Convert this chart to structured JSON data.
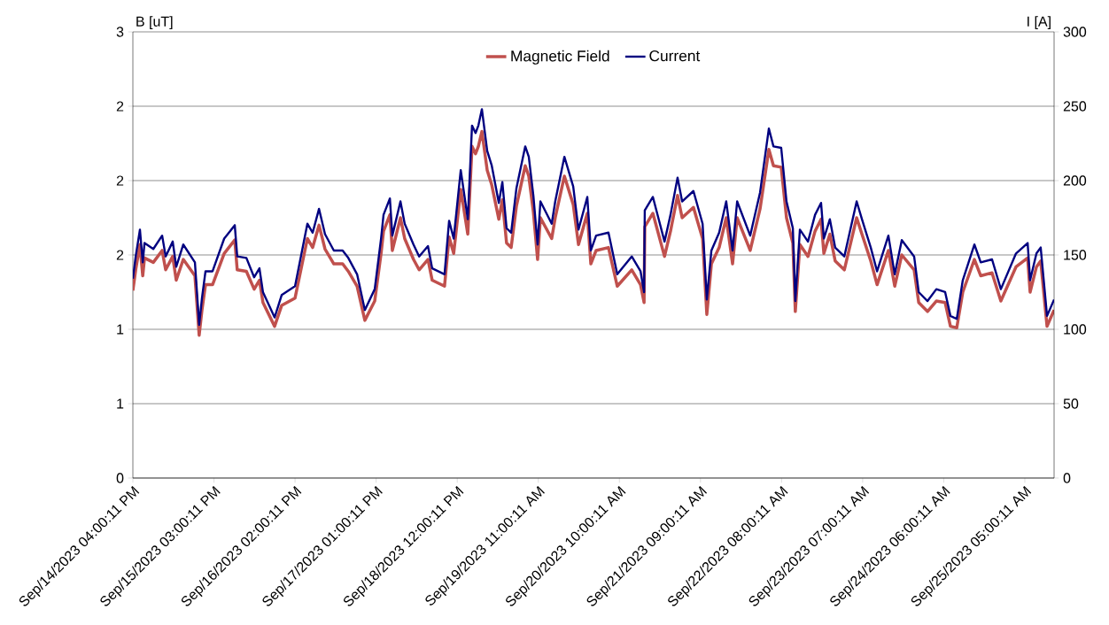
{
  "chart_data": {
    "type": "line",
    "ylabel": "B [uT]",
    "y2label": "I [A]",
    "legend": "top",
    "grid": "y",
    "xlim": [
      "2023-09-14T16:00",
      "2023-09-25T13:18"
    ],
    "xticks": [
      {
        "value": "2023-09-14T16:00",
        "label": "Sep/14/2023 04:00:11 PM"
      },
      {
        "value": "2023-09-15T15:00",
        "label": "Sep/15/2023 03:00:11 PM"
      },
      {
        "value": "2023-09-16T14:00",
        "label": "Sep/16/2023 02:00:11 PM"
      },
      {
        "value": "2023-09-17T13:00",
        "label": "Sep/17/2023 01:00:11 PM"
      },
      {
        "value": "2023-09-18T12:00",
        "label": "Sep/18/2023 12:00:11 PM"
      },
      {
        "value": "2023-09-19T11:00",
        "label": "Sep/19/2023 11:00:11 AM"
      },
      {
        "value": "2023-09-20T10:00",
        "label": "Sep/20/2023 10:00:11 AM"
      },
      {
        "value": "2023-09-21T09:00",
        "label": "Sep/21/2023 09:00:11 AM"
      },
      {
        "value": "2023-09-22T08:00",
        "label": "Sep/22/2023 08:00:11 AM"
      },
      {
        "value": "2023-09-23T07:00",
        "label": "Sep/23/2023 07:00:11 AM"
      },
      {
        "value": "2023-09-24T06:00",
        "label": "Sep/24/2023 06:00:11 AM"
      },
      {
        "value": "2023-09-25T05:00",
        "label": "Sep/25/2023 05:00:11 AM"
      }
    ],
    "ylim": [
      0,
      3
    ],
    "yticks": [
      0,
      {
        "value": 0.5,
        "label": "1"
      },
      1,
      {
        "value": 1.5,
        "label": "2"
      },
      2,
      {
        "value": 2.5,
        "label": "2"
      },
      3
    ],
    "y2lim": [
      0,
      300
    ],
    "y2ticks": [
      0,
      50,
      100,
      150,
      200,
      250,
      300
    ],
    "x": [
      "2023-09-14T16:00",
      "2023-09-14T16:48",
      "2023-09-14T18:00",
      "2023-09-14T18:48",
      "2023-09-14T19:18",
      "2023-09-14T21:48",
      "2023-09-15T00:18",
      "2023-09-15T01:18",
      "2023-09-15T03:18",
      "2023-09-15T04:18",
      "2023-09-15T06:18",
      "2023-09-15T09:36",
      "2023-09-15T10:48",
      "2023-09-15T11:36",
      "2023-09-15T12:36",
      "2023-09-15T14:36",
      "2023-09-15T17:54",
      "2023-09-15T20:54",
      "2023-09-15T21:36",
      "2023-09-16T00:12",
      "2023-09-16T02:24",
      "2023-09-16T03:54",
      "2023-09-16T04:54",
      "2023-09-16T08:12",
      "2023-09-16T10:12",
      "2023-09-16T14:00",
      "2023-09-16T17:30",
      "2023-09-16T19:00",
      "2023-09-16T20:48",
      "2023-09-16T22:30",
      "2023-09-17T01:00",
      "2023-09-17T03:30",
      "2023-09-17T05:06",
      "2023-09-17T07:36",
      "2023-09-17T09:48",
      "2023-09-17T12:36",
      "2023-09-17T14:24",
      "2023-09-17T15:06",
      "2023-09-17T16:54",
      "2023-09-17T17:36",
      "2023-09-17T19:54",
      "2023-09-17T21:06",
      "2023-09-17T23:36",
      "2023-09-18T01:12",
      "2023-09-18T03:42",
      "2023-09-18T04:54",
      "2023-09-18T08:24",
      "2023-09-18T09:42",
      "2023-09-18T11:00",
      "2023-09-18T13:00",
      "2023-09-18T15:00",
      "2023-09-18T16:12",
      "2023-09-18T17:12",
      "2023-09-18T18:00",
      "2023-09-18T19:00",
      "2023-09-18T20:30",
      "2023-09-18T21:48",
      "2023-09-18T23:48",
      "2023-09-19T00:48",
      "2023-09-19T02:00",
      "2023-09-19T03:18",
      "2023-09-19T04:48",
      "2023-09-19T07:18",
      "2023-09-19T08:18",
      "2023-09-19T09:36",
      "2023-09-19T10:48",
      "2023-09-19T11:36",
      "2023-09-19T14:48",
      "2023-09-19T15:48",
      "2023-09-19T18:24",
      "2023-09-19T20:54",
      "2023-09-19T22:24",
      "2023-09-20T00:54",
      "2023-09-20T01:54",
      "2023-09-20T03:24",
      "2023-09-20T06:54",
      "2023-09-20T09:24",
      "2023-09-20T13:30",
      "2023-09-20T16:00",
      "2023-09-20T17:00",
      "2023-09-20T17:12",
      "2023-09-20T19:30",
      "2023-09-20T22:48",
      "2023-09-21T00:30",
      "2023-09-21T02:30",
      "2023-09-21T03:48",
      "2023-09-21T07:00",
      "2023-09-21T09:36",
      "2023-09-21T10:48",
      "2023-09-21T12:06",
      "2023-09-21T14:18",
      "2023-09-21T16:18",
      "2023-09-21T18:06",
      "2023-09-21T19:24",
      "2023-09-21T23:06",
      "2023-09-22T01:54",
      "2023-09-22T04:24",
      "2023-09-22T05:42",
      "2023-09-22T07:54",
      "2023-09-22T09:24",
      "2023-09-22T11:12",
      "2023-09-22T11:54",
      "2023-09-22T13:12",
      "2023-09-22T15:30",
      "2023-09-22T17:30",
      "2023-09-22T19:12",
      "2023-09-22T20:00",
      "2023-09-22T21:42",
      "2023-09-22T23:12",
      "2023-09-23T01:48",
      "2023-09-23T05:18",
      "2023-09-23T06:48",
      "2023-09-23T09:18",
      "2023-09-23T11:06",
      "2023-09-23T14:18",
      "2023-09-23T16:06",
      "2023-09-23T18:06",
      "2023-09-23T21:36",
      "2023-09-23T22:54",
      "2023-09-24T01:24",
      "2023-09-24T03:54",
      "2023-09-24T06:24",
      "2023-09-24T07:54",
      "2023-09-24T09:42",
      "2023-09-24T11:24",
      "2023-09-24T14:42",
      "2023-09-24T16:30",
      "2023-09-24T19:42",
      "2023-09-24T22:12",
      "2023-09-25T02:30",
      "2023-09-25T05:48",
      "2023-09-25T06:30",
      "2023-09-25T08:18",
      "2023-09-25T09:30",
      "2023-09-25T11:18",
      "2023-09-25T13:18"
    ],
    "series": [
      {
        "name": "Magnetic Field",
        "color": "#c0504d",
        "axis": "y",
        "values": [
          1.26,
          1.4,
          1.57,
          1.36,
          1.48,
          1.45,
          1.53,
          1.4,
          1.49,
          1.33,
          1.47,
          1.36,
          0.96,
          1.13,
          1.3,
          1.3,
          1.51,
          1.6,
          1.4,
          1.39,
          1.27,
          1.33,
          1.18,
          1.02,
          1.16,
          1.21,
          1.61,
          1.55,
          1.7,
          1.54,
          1.44,
          1.44,
          1.39,
          1.29,
          1.06,
          1.19,
          1.51,
          1.66,
          1.77,
          1.53,
          1.75,
          1.61,
          1.47,
          1.4,
          1.47,
          1.33,
          1.29,
          1.62,
          1.51,
          1.94,
          1.64,
          2.23,
          2.18,
          2.23,
          2.33,
          2.07,
          1.97,
          1.74,
          1.87,
          1.58,
          1.55,
          1.83,
          2.1,
          2.03,
          1.79,
          1.47,
          1.75,
          1.61,
          1.75,
          2.03,
          1.84,
          1.57,
          1.78,
          1.44,
          1.53,
          1.55,
          1.29,
          1.4,
          1.3,
          1.18,
          1.69,
          1.78,
          1.49,
          1.66,
          1.9,
          1.75,
          1.82,
          1.61,
          1.1,
          1.44,
          1.55,
          1.75,
          1.44,
          1.75,
          1.53,
          1.81,
          2.21,
          2.1,
          2.09,
          1.75,
          1.58,
          1.12,
          1.57,
          1.49,
          1.66,
          1.74,
          1.51,
          1.64,
          1.46,
          1.4,
          1.75,
          1.64,
          1.46,
          1.3,
          1.53,
          1.29,
          1.5,
          1.4,
          1.18,
          1.12,
          1.19,
          1.18,
          1.02,
          1.01,
          1.25,
          1.47,
          1.36,
          1.38,
          1.19,
          1.42,
          1.48,
          1.25,
          1.42,
          1.46,
          1.02,
          1.13
        ]
      },
      {
        "name": "Current",
        "color": "#000080",
        "axis": "y2",
        "values": [
          134,
          149,
          167,
          145,
          158,
          154,
          163,
          149,
          159,
          142,
          157,
          145,
          103,
          121,
          139,
          139,
          161,
          170,
          149,
          148,
          135,
          141,
          125,
          108,
          123,
          129,
          171,
          165,
          181,
          164,
          153,
          153,
          148,
          137,
          113,
          127,
          161,
          177,
          188,
          163,
          186,
          171,
          157,
          149,
          156,
          141,
          137,
          173,
          161,
          207,
          174,
          237,
          232,
          237,
          248,
          220,
          210,
          185,
          199,
          168,
          165,
          195,
          223,
          216,
          190,
          157,
          186,
          171,
          186,
          216,
          196,
          167,
          189,
          153,
          163,
          165,
          137,
          149,
          139,
          125,
          180,
          189,
          159,
          177,
          202,
          186,
          193,
          171,
          120,
          153,
          165,
          186,
          153,
          186,
          163,
          192,
          235,
          223,
          222,
          186,
          168,
          119,
          167,
          159,
          177,
          185,
          161,
          174,
          155,
          149,
          186,
          174,
          155,
          139,
          163,
          137,
          160,
          149,
          125,
          119,
          127,
          125,
          109,
          107,
          133,
          157,
          145,
          147,
          127,
          151,
          158,
          133,
          151,
          155,
          109,
          120
        ]
      }
    ]
  }
}
